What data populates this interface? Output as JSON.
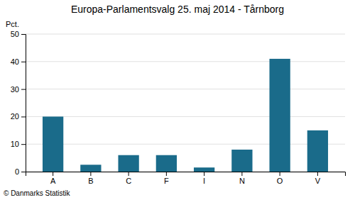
{
  "chart_data": {
    "type": "bar",
    "title": "Europa-Parlamentsvalg 25. maj 2014 - Tårnborg",
    "ylabel": "Pct.",
    "categories": [
      "A",
      "B",
      "C",
      "F",
      "I",
      "N",
      "O",
      "V"
    ],
    "values": [
      20.0,
      2.5,
      6.0,
      6.0,
      1.5,
      8.0,
      41.0,
      15.0
    ],
    "color": "#1a6b8a",
    "ylim": [
      0,
      50
    ],
    "yticks": [
      0,
      10,
      20,
      30,
      40,
      50
    ],
    "grid": true,
    "annotations": [
      "© Danmarks Statistik"
    ]
  }
}
